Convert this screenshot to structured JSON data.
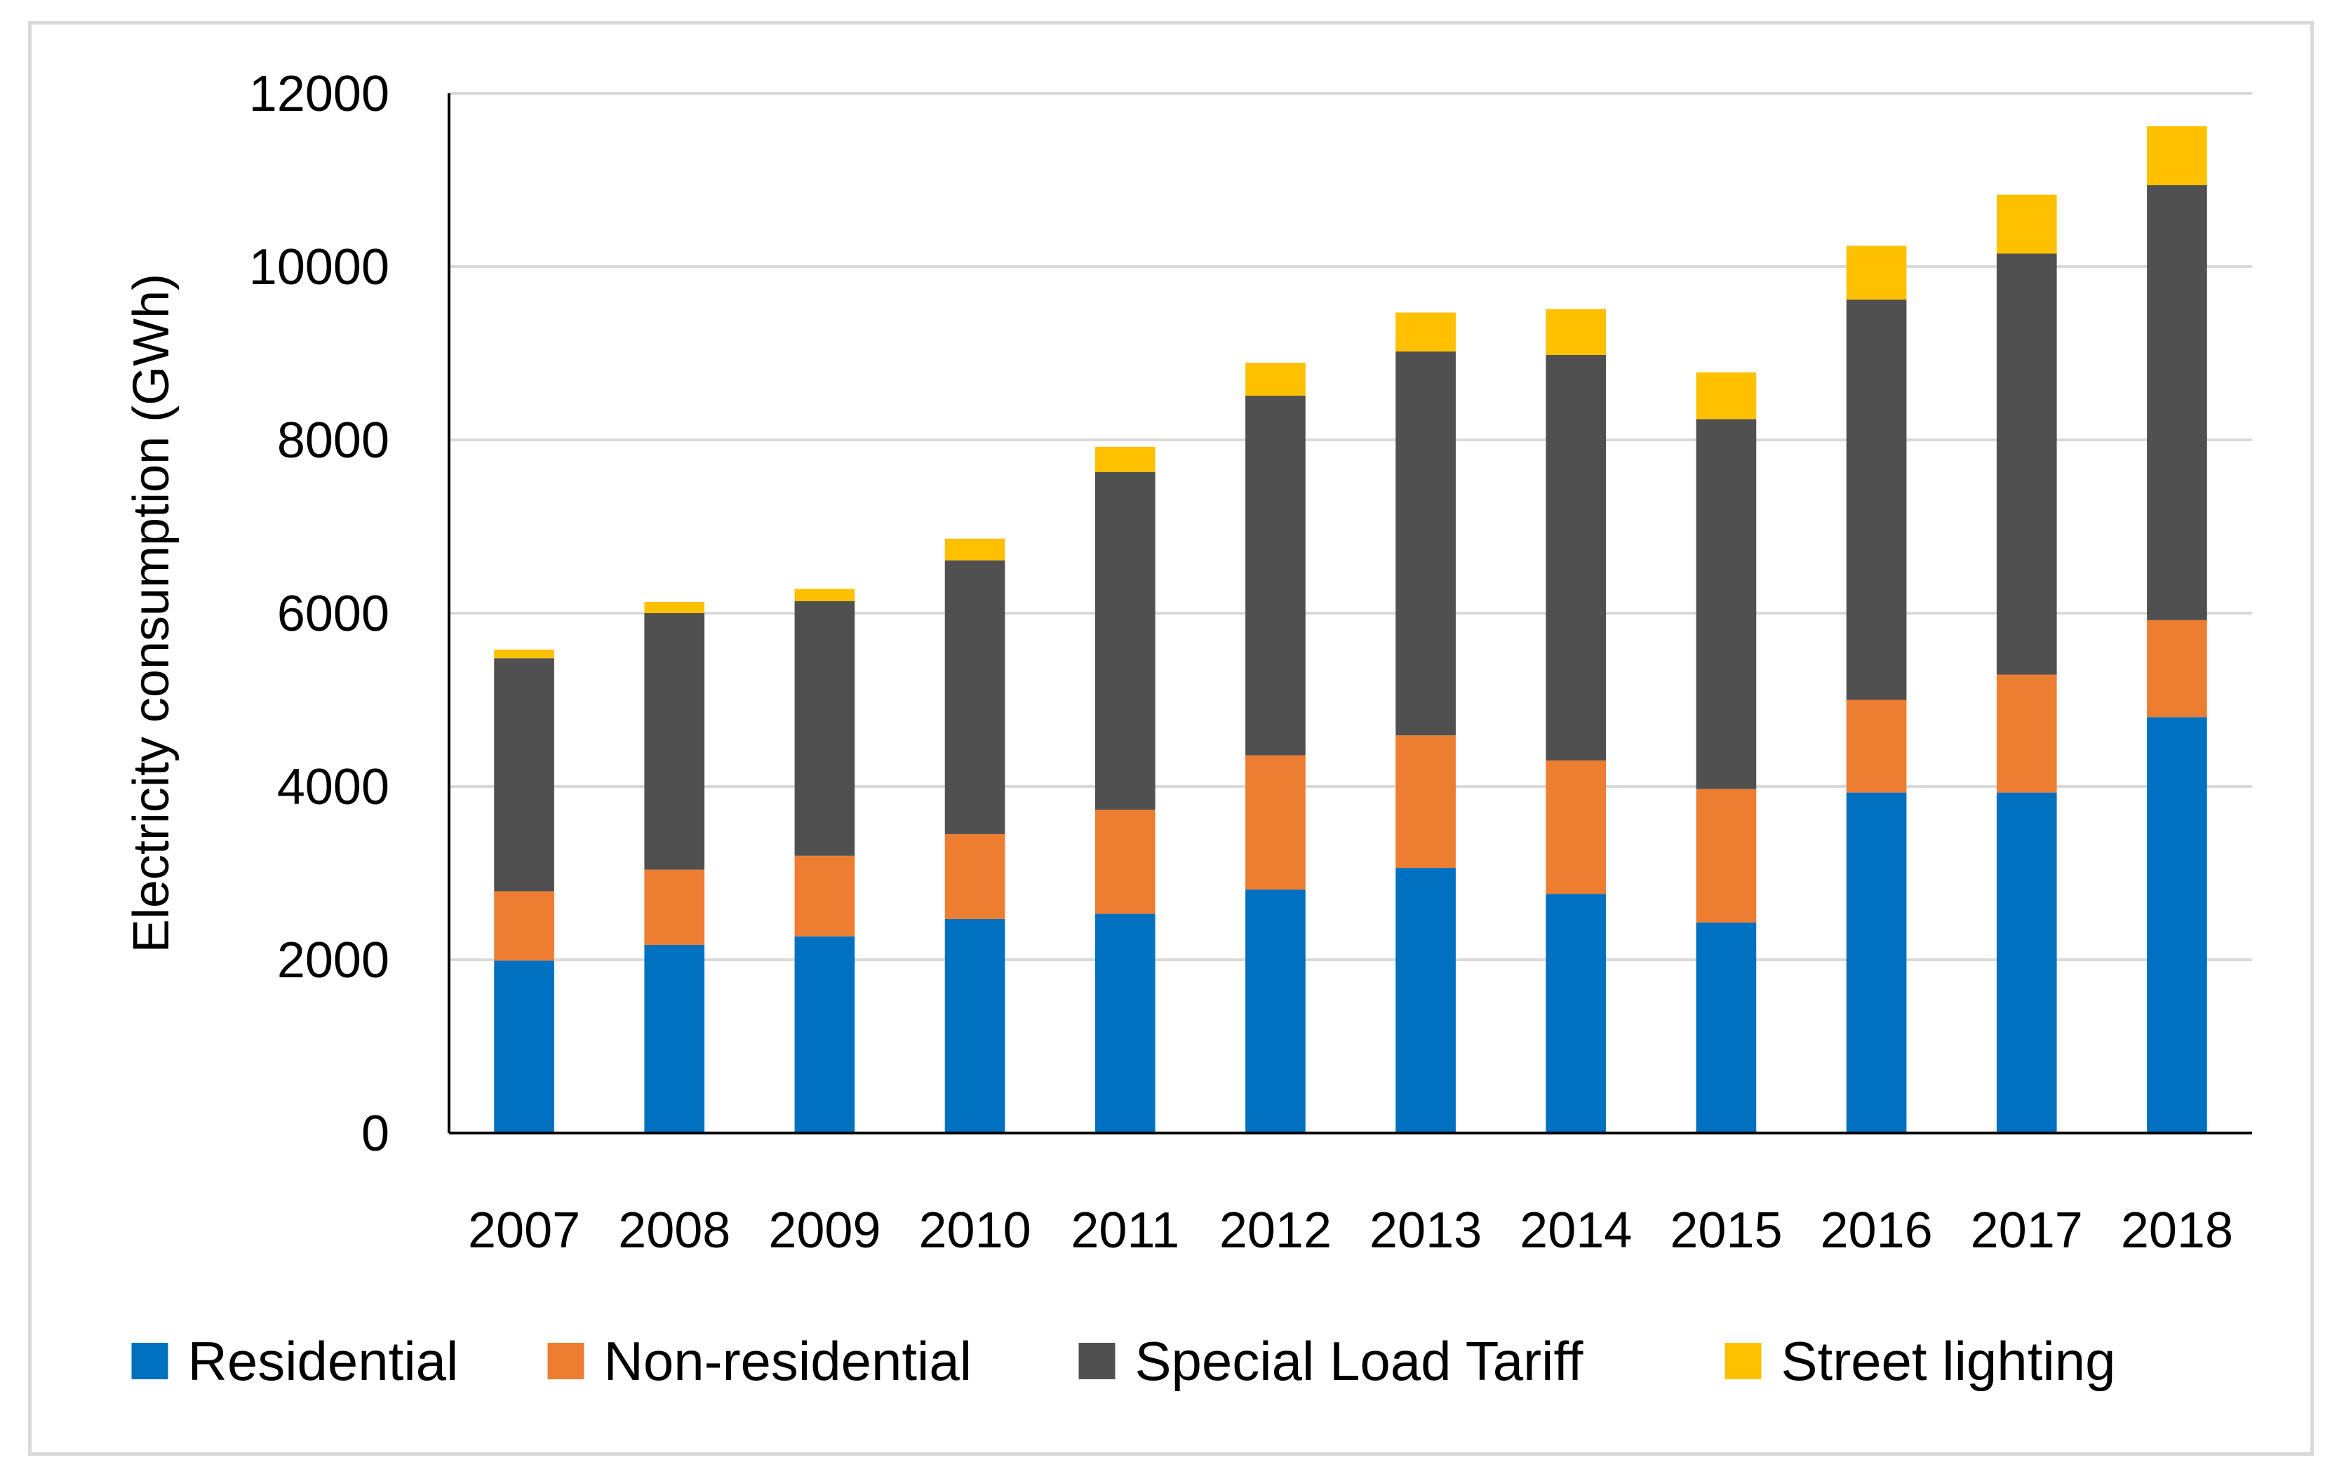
{
  "chart_data": {
    "type": "bar",
    "stacked": true,
    "title": "",
    "xlabel": "",
    "ylabel": "Electricity consumption (GWh)",
    "ylim": [
      0,
      12000
    ],
    "yticks": [
      0,
      2000,
      4000,
      6000,
      8000,
      10000,
      12000
    ],
    "grid": true,
    "legend_position": "bottom",
    "categories": [
      "2007",
      "2008",
      "2009",
      "2010",
      "2011",
      "2012",
      "2013",
      "2014",
      "2015",
      "2016",
      "2017",
      "2018"
    ],
    "series": [
      {
        "name": "Residential",
        "color": "#0070c0",
        "values": [
          1990,
          2170,
          2270,
          2470,
          2530,
          2810,
          3060,
          2760,
          2430,
          3930,
          3930,
          4800
        ]
      },
      {
        "name": "Non-residential",
        "color": "#ed7d31",
        "values": [
          800,
          870,
          930,
          980,
          1200,
          1550,
          1530,
          1540,
          1540,
          1070,
          1360,
          1120
        ]
      },
      {
        "name": "Special Load Tariff",
        "color": "#505050",
        "values": [
          2690,
          2960,
          2940,
          3160,
          3900,
          4150,
          4430,
          4680,
          4270,
          4620,
          4860,
          5020
        ]
      },
      {
        "name": "Street lighting",
        "color": "#ffc000",
        "values": [
          100,
          130,
          140,
          250,
          290,
          380,
          450,
          530,
          540,
          620,
          680,
          680
        ]
      }
    ]
  }
}
